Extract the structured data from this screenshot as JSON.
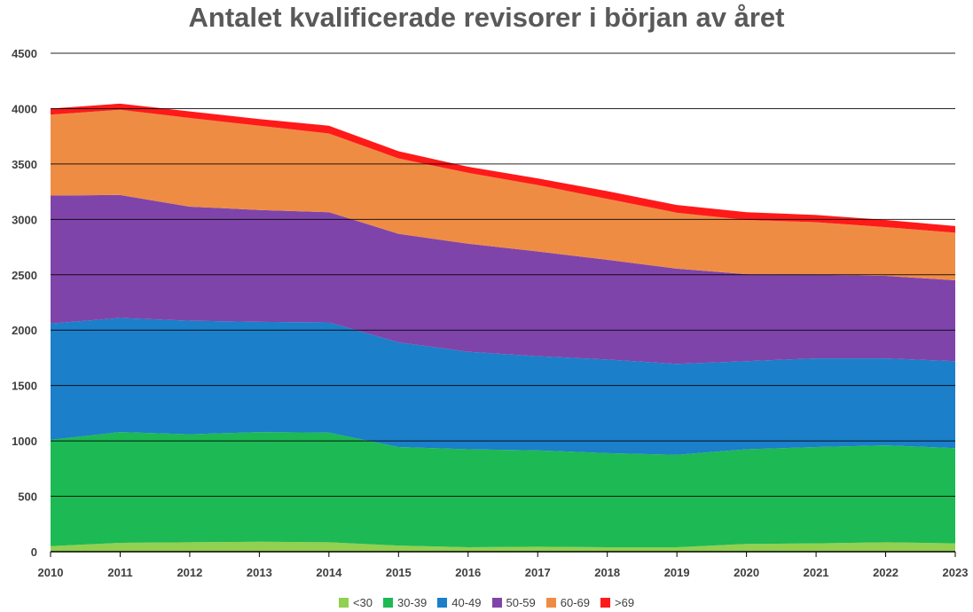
{
  "chart_data": {
    "type": "area",
    "stacked": true,
    "title": "Antalet kvalificerade revisorer i början av året",
    "xlabel": "",
    "ylabel": "",
    "ylim": [
      0,
      4500
    ],
    "yticks": [
      0,
      500,
      1000,
      1500,
      2000,
      2500,
      3000,
      3500,
      4000,
      4500
    ],
    "grid": true,
    "legend_position": "bottom",
    "categories": [
      "2010",
      "2011",
      "2012",
      "2013",
      "2014",
      "2015",
      "2016",
      "2017",
      "2018",
      "2019",
      "2020",
      "2021",
      "2022",
      "2023"
    ],
    "series": [
      {
        "name": "<30",
        "color": "#92D050",
        "values": [
          50,
          80,
          85,
          90,
          85,
          55,
          40,
          45,
          40,
          40,
          70,
          75,
          85,
          75
        ]
      },
      {
        "name": "30-39",
        "color": "#1DB954",
        "values": [
          960,
          1000,
          975,
          990,
          990,
          890,
          885,
          870,
          850,
          835,
          855,
          870,
          875,
          860
        ]
      },
      {
        "name": "40-49",
        "color": "#1B7FC9",
        "values": [
          1050,
          1030,
          1025,
          995,
          995,
          945,
          880,
          850,
          845,
          820,
          795,
          800,
          785,
          785
        ]
      },
      {
        "name": "50-59",
        "color": "#7F44AA",
        "values": [
          1155,
          1110,
          1030,
          1010,
          995,
          980,
          975,
          945,
          900,
          860,
          785,
          755,
          745,
          730
        ]
      },
      {
        "name": "60-69",
        "color": "#EF8C44",
        "values": [
          730,
          770,
          800,
          760,
          710,
          680,
          640,
          600,
          550,
          505,
          490,
          475,
          440,
          430
        ]
      },
      {
        "name": ">69",
        "color": "#FF1A1A",
        "values": [
          55,
          55,
          60,
          60,
          70,
          65,
          55,
          60,
          70,
          70,
          70,
          65,
          65,
          60
        ]
      }
    ]
  }
}
